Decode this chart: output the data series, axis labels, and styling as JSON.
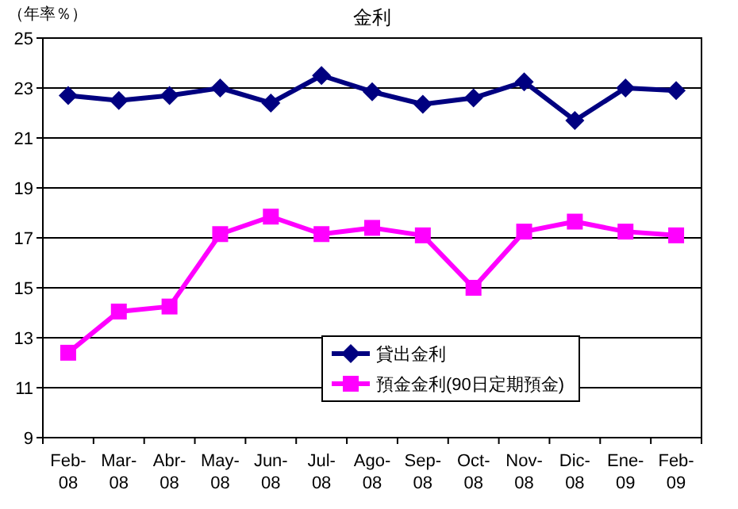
{
  "chart_data": {
    "type": "line",
    "title": "金利",
    "ylabel": "（年率％）",
    "categories": [
      "Feb-08",
      "Mar-08",
      "Abr-08",
      "May-08",
      "Jun-08",
      "Jul-08",
      "Ago-08",
      "Sep-08",
      "Oct-08",
      "Nov-08",
      "Dic-08",
      "Ene-09",
      "Feb-09"
    ],
    "series": [
      {
        "name": "貸出金利",
        "color": "#000080",
        "marker": "diamond",
        "values": [
          22.7,
          22.5,
          22.7,
          23.0,
          22.4,
          23.5,
          22.85,
          22.35,
          22.6,
          23.25,
          21.7,
          23.0,
          22.9
        ]
      },
      {
        "name": "預金金利(90日定期預金)",
        "color": "#ff00ff",
        "marker": "square",
        "values": [
          12.4,
          14.05,
          14.25,
          17.15,
          17.85,
          17.15,
          17.4,
          17.1,
          15.0,
          17.25,
          17.65,
          17.25,
          17.1
        ]
      }
    ],
    "ylim": [
      9,
      25
    ],
    "yticks": [
      9,
      11,
      13,
      15,
      17,
      19,
      21,
      23,
      25
    ],
    "grid": "y",
    "legend": "bottom"
  }
}
